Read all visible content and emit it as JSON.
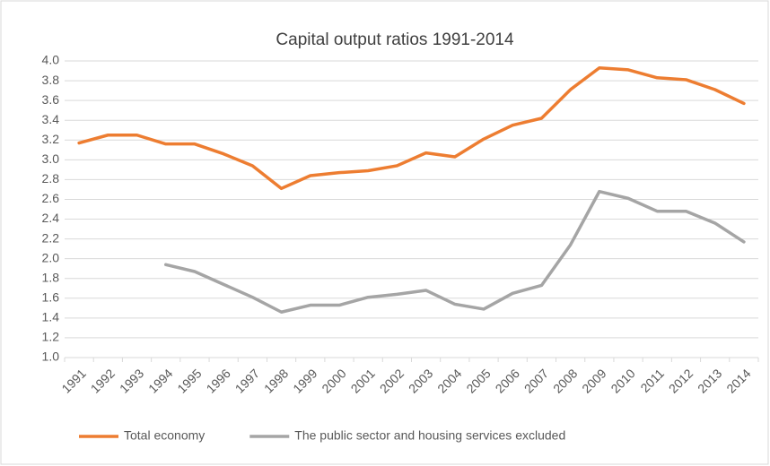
{
  "chart_data": {
    "type": "line",
    "title": "Capital output ratios 1991-2014",
    "categories": [
      "1991",
      "1992",
      "1993",
      "1994",
      "1995",
      "1996",
      "1997",
      "1998",
      "1999",
      "2000",
      "2001",
      "2002",
      "2003",
      "2004",
      "2005",
      "2006",
      "2007",
      "2008",
      "2009",
      "2010",
      "2011",
      "2012",
      "2013",
      "2014"
    ],
    "series": [
      {
        "name": "Total economy",
        "color": "#ed7d31",
        "values": [
          3.17,
          3.25,
          3.25,
          3.16,
          3.16,
          3.06,
          2.94,
          2.71,
          2.84,
          2.87,
          2.89,
          2.94,
          3.07,
          3.03,
          3.21,
          3.35,
          3.42,
          3.71,
          3.93,
          3.91,
          3.83,
          3.81,
          3.71,
          3.57
        ]
      },
      {
        "name": "The public sector and housing services excluded",
        "color": "#a5a5a5",
        "values": [
          null,
          null,
          null,
          1.94,
          1.87,
          1.74,
          1.61,
          1.46,
          1.53,
          1.53,
          1.61,
          1.64,
          1.68,
          1.54,
          1.49,
          1.65,
          1.73,
          2.14,
          2.68,
          2.61,
          2.48,
          2.48,
          2.36,
          2.17
        ]
      }
    ],
    "ylim": [
      1,
      4
    ],
    "yticks": [
      {
        "value": 1,
        "label": "1.0"
      },
      1.2,
      1.4,
      1.6,
      1.8,
      {
        "value": 2,
        "label": "2.0"
      },
      2.2,
      2.4,
      2.6,
      2.8,
      {
        "value": 3,
        "label": "3.0"
      },
      3.2,
      3.4,
      3.6,
      3.8,
      {
        "value": 4,
        "label": "4.0"
      }
    ],
    "grid": true,
    "legend": "bottom"
  }
}
